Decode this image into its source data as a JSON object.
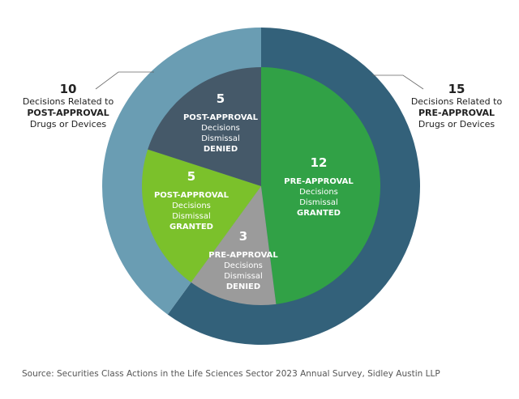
{
  "chart_data": {
    "type": "pie",
    "outer_ring": {
      "series": [
        {
          "name": "Decisions Related to PRE-APPROVAL Drugs or Devices",
          "value": 15,
          "color": "#33617a",
          "label": {
            "num": "15",
            "line1": "Decisions Related to",
            "bold": "PRE-APPROVAL",
            "line3": "Drugs or Devices"
          }
        },
        {
          "name": "Decisions Related to POST-APPROVAL Drugs or Devices",
          "value": 10,
          "color": "#6a9db3",
          "label": {
            "num": "10",
            "line1": "Decisions Related to",
            "bold": "POST-APPROVAL",
            "line3": "Drugs or Devices"
          }
        }
      ]
    },
    "inner_pie": {
      "slices": [
        {
          "name": "PRE-APPROVAL Decisions Dismissal GRANTED",
          "value": 12,
          "color": "#31a146",
          "num": "12",
          "title": "PRE-APPROVAL",
          "line1": "Decisions",
          "line2": "Dismissal",
          "status": "GRANTED"
        },
        {
          "name": "PRE-APPROVAL Decisions Dismissal DENIED",
          "value": 3,
          "color": "#9b9b9b",
          "num": "3",
          "title": "PRE-APPROVAL",
          "line1": "Decisions",
          "line2": "Dismissal",
          "status": "DENIED"
        },
        {
          "name": "POST-APPROVAL Decisions Dismissal GRANTED",
          "value": 5,
          "color": "#7bc12b",
          "num": "5",
          "title": "POST-APPROVAL",
          "line1": "Decisions",
          "line2": "Dismissal",
          "status": "GRANTED"
        },
        {
          "name": "POST-APPROVAL Decisions Dismissal DENIED",
          "value": 5,
          "color": "#455969",
          "num": "5",
          "title": "POST-APPROVAL",
          "line1": "Decisions",
          "line2": "Dismissal",
          "status": "DENIED"
        }
      ]
    },
    "source": "Source: Securities Class Actions in the Life Sciences Sector 2023 Annual Survey, Sidley Austin LLP"
  }
}
